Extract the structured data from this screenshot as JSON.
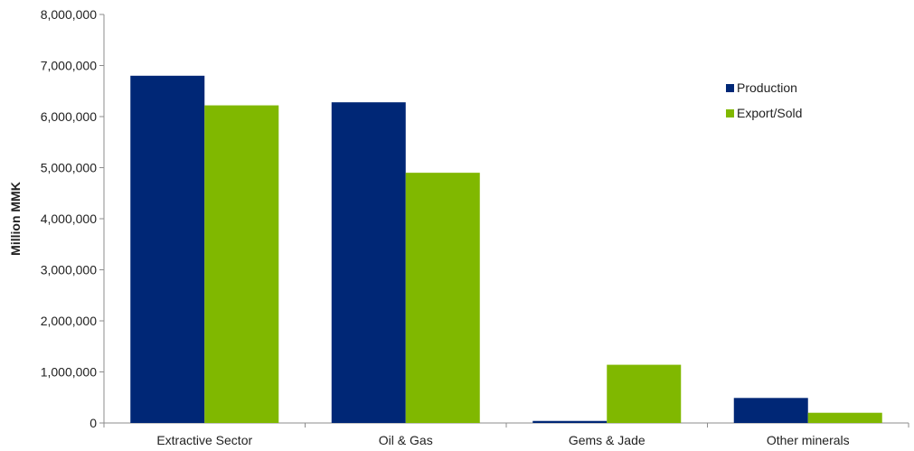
{
  "chart_data": {
    "type": "bar",
    "title": "",
    "xlabel": "",
    "ylabel": "Million MMK",
    "ylim": [
      0,
      8000000
    ],
    "yticks": [
      0,
      1000000,
      2000000,
      3000000,
      4000000,
      5000000,
      6000000,
      7000000,
      8000000
    ],
    "ytick_labels": [
      "0",
      "1,000,000",
      "2,000,000",
      "3,000,000",
      "4,000,000",
      "5,000,000",
      "6,000,000",
      "7,000,000",
      "8,000,000"
    ],
    "categories": [
      "Extractive Sector",
      "Oil & Gas",
      "Gems & Jade",
      "Other minerals"
    ],
    "series": [
      {
        "name": "Production",
        "color": "#002776",
        "values": [
          6800000,
          6280000,
          40000,
          490000
        ]
      },
      {
        "name": "Export/Sold",
        "color": "#80B800",
        "values": [
          6220000,
          4900000,
          1140000,
          200000
        ]
      }
    ],
    "grid": false,
    "legend_position": "top-right"
  }
}
